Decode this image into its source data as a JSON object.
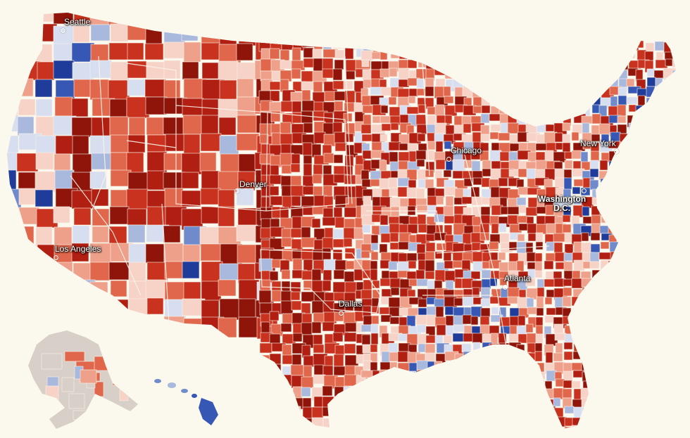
{
  "colors": {
    "background": "#fbf8ee",
    "republican_scale": [
      "#f6d2c7",
      "#eea08a",
      "#e0674c",
      "#c9321e",
      "#b01f12",
      "#8f150b"
    ],
    "democrat_scale": [
      "#d6deef",
      "#a9b9de",
      "#6f8bcc",
      "#3657b4",
      "#1f3c9a"
    ],
    "no_data": "#d8cfc8",
    "borders": "#fbf4ea"
  },
  "cities": [
    {
      "key": "seattle",
      "name": "Seattle"
    },
    {
      "key": "denver",
      "name": "Denver"
    },
    {
      "key": "los-angeles",
      "name": "Los Angeles"
    },
    {
      "key": "chicago",
      "name": "Chicago"
    },
    {
      "key": "new-york",
      "name": "New York"
    },
    {
      "key": "washington-dc",
      "name": "Washington D.C.",
      "line1": "Washington",
      "line2": "D.C."
    },
    {
      "key": "atlanta",
      "name": "Atlanta"
    },
    {
      "key": "dallas",
      "name": "Dallas"
    }
  ]
}
